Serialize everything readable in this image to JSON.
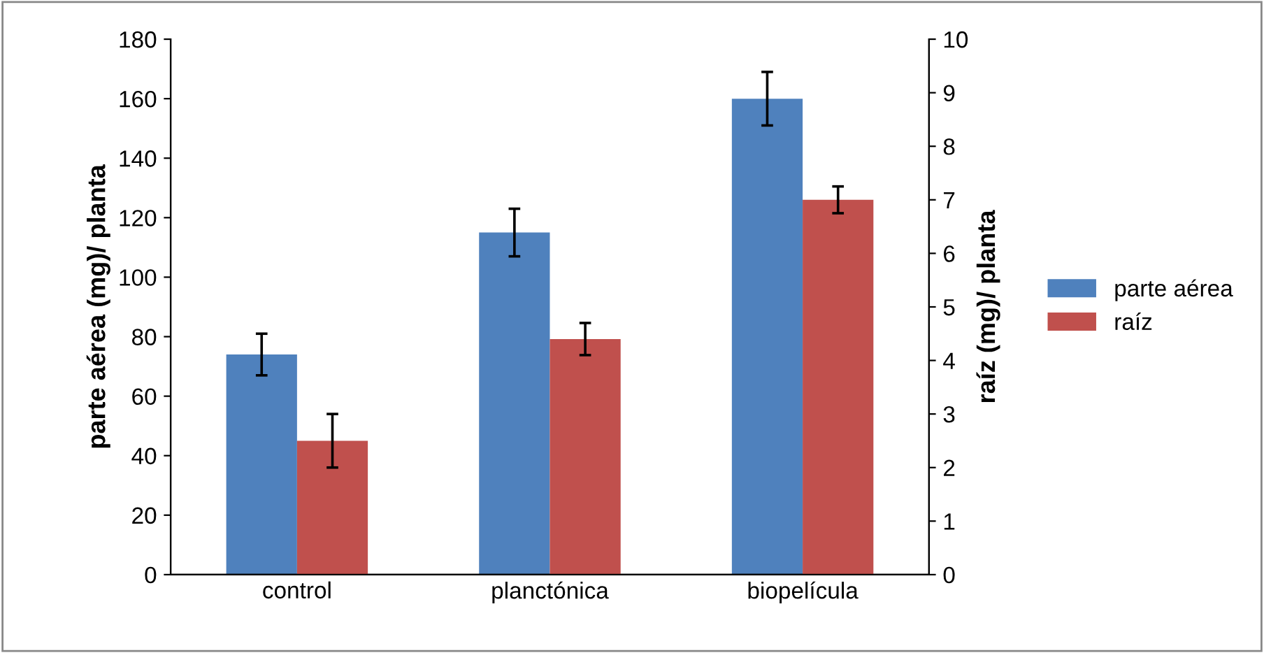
{
  "chart_data": {
    "type": "bar",
    "ylabel": "parte aérea (mg)/ planta",
    "y2label": "raíz (mg)/ planta",
    "categories": [
      "control",
      "planctónica",
      "biopelícula"
    ],
    "series": [
      {
        "name": "parte aérea",
        "color": "#4f81bd",
        "values": [
          74,
          115,
          160
        ],
        "errors": [
          7,
          8,
          9
        ]
      },
      {
        "name": "raíz",
        "color": "#c0504d",
        "values": [
          2.5,
          4.4,
          7.0
        ],
        "errors": [
          0.5,
          0.3,
          0.25
        ],
        "axis": "y2"
      }
    ],
    "ylim": [
      0,
      180
    ],
    "yticks": [
      0,
      20,
      40,
      60,
      80,
      100,
      120,
      140,
      160,
      180
    ],
    "y2lim": [
      0,
      10
    ],
    "y2ticks": [
      0,
      1,
      2,
      3,
      4,
      5,
      6,
      7,
      8,
      9,
      10
    ],
    "legend": "right",
    "grid": false
  }
}
